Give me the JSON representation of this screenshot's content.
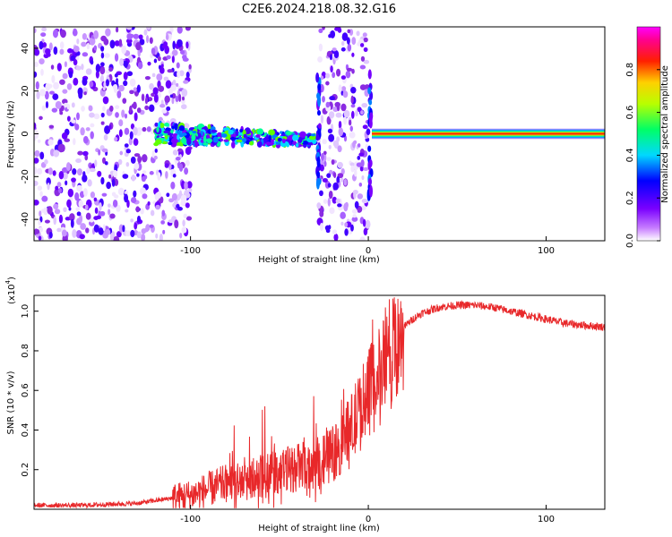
{
  "title": "C2E6.2024.218.08.32.G16",
  "chart_data": [
    {
      "type": "heatmap",
      "xlabel": "Height of straight line (km)",
      "ylabel": "Frequency (Hz)",
      "xlim": [
        -188,
        133
      ],
      "ylim": [
        -50,
        50
      ],
      "xticks": [
        -100,
        0,
        100
      ],
      "xtick_labels": [
        "-100",
        "0",
        "100"
      ],
      "yticks": [
        -40,
        -20,
        0,
        20,
        40
      ],
      "ytick_labels": [
        "-40",
        "-20",
        "0",
        "20",
        "40"
      ],
      "colorbar": {
        "label": "Normalized spectral amplitude",
        "range": [
          0,
          1
        ],
        "ticks": [
          0.0,
          0.2,
          0.4,
          0.6,
          0.8
        ],
        "tick_labels": [
          "0.0",
          "0.2",
          "0.4",
          "0.6",
          "0.8"
        ],
        "colormap": [
          "#ffffff",
          "#9e00ff",
          "#0000ff",
          "#00ffff",
          "#00ff00",
          "#ffff00",
          "#ff0000",
          "#ff00ff"
        ]
      },
      "features": [
        {
          "kind": "noise",
          "x_range": [
            -188,
            -100
          ],
          "freq_range": [
            -50,
            50
          ],
          "amplitude": 0.1
        },
        {
          "kind": "noise",
          "x_range": [
            -28,
            0
          ],
          "freq_range": [
            -50,
            50
          ],
          "amplitude": 0.1
        },
        {
          "kind": "band",
          "x_range": [
            -120,
            -30
          ],
          "freq_start": 0,
          "freq_end": -3,
          "amplitude": 0.4
        },
        {
          "kind": "line",
          "x_range": [
            2,
            133
          ],
          "freq": 0,
          "amplitude": 0.9
        }
      ],
      "grid": false
    },
    {
      "type": "line",
      "xlabel": "Height of straight line (km)",
      "ylabel": "SNR (10 * v/v)",
      "y_exponent_label": "(x10",
      "y_exponent": "4",
      "xlim": [
        -188,
        133
      ],
      "ylim": [
        0,
        1.08
      ],
      "xticks": [
        -100,
        0,
        100
      ],
      "xtick_labels": [
        "-100",
        "0",
        "100"
      ],
      "yticks": [
        0.2,
        0.4,
        0.6,
        0.8,
        1.0
      ],
      "ytick_labels": [
        "0.2",
        "0.4",
        "0.6",
        "0.8",
        "1.0"
      ],
      "color": "#e8282a",
      "x": [
        -188,
        -160,
        -130,
        -115,
        -100,
        -90,
        -80,
        -70,
        -60,
        -50,
        -40,
        -30,
        -20,
        -10,
        0,
        5,
        10,
        15,
        20,
        25,
        30,
        40,
        50,
        60,
        70,
        80,
        90,
        100,
        110,
        120,
        133
      ],
      "y": [
        0.02,
        0.02,
        0.03,
        0.05,
        0.07,
        0.1,
        0.13,
        0.14,
        0.17,
        0.19,
        0.21,
        0.23,
        0.28,
        0.4,
        0.58,
        0.65,
        0.73,
        0.85,
        0.92,
        0.96,
        0.99,
        1.02,
        1.03,
        1.03,
        1.02,
        1.0,
        0.98,
        0.96,
        0.94,
        0.93,
        0.92
      ],
      "grid": false
    }
  ]
}
